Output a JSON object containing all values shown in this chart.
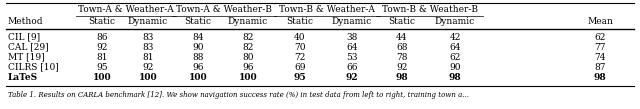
{
  "header_sub": [
    "Method",
    "Static",
    "Dynamic",
    "Static",
    "Dynamic",
    "Static",
    "Dynamic",
    "Static",
    "Dynamic",
    "Mean"
  ],
  "group_labels": [
    "Town-A & Weather-A",
    "Town-A & Weather-B",
    "Town-B & Weather-A",
    "Town-B & Weather-B"
  ],
  "rows": [
    [
      "CIL [9]",
      "86",
      "83",
      "84",
      "82",
      "40",
      "38",
      "44",
      "42",
      "62"
    ],
    [
      "CAL [29]",
      "92",
      "83",
      "90",
      "82",
      "70",
      "64",
      "68",
      "64",
      "77"
    ],
    [
      "MT [19]",
      "81",
      "81",
      "88",
      "80",
      "72",
      "53",
      "78",
      "62",
      "74"
    ],
    [
      "CILRS [10]",
      "95",
      "92",
      "96",
      "96",
      "69",
      "66",
      "92",
      "90",
      "87"
    ],
    [
      "LaTeS",
      "100",
      "100",
      "100",
      "100",
      "95",
      "92",
      "98",
      "98",
      "98"
    ]
  ],
  "bold_row": 4,
  "background_color": "#ffffff",
  "font_size": 6.5,
  "caption": "Table 1. Results on CARLA benchmark [12]. We show navigation success rate (%) in test data from left to right, training town a..."
}
